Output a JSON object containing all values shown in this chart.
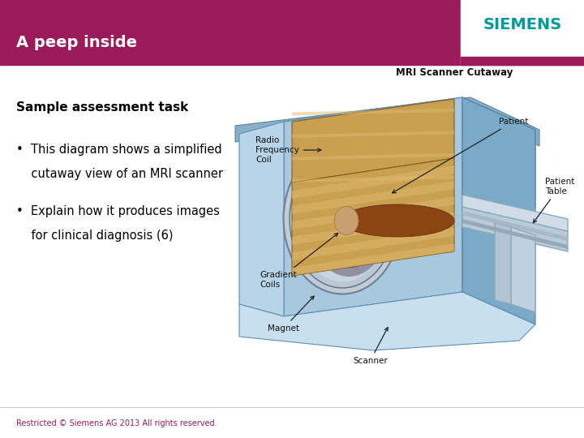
{
  "bg_color": "#ffffff",
  "header_color": "#9b1b5a",
  "header_text": "A peep inside",
  "header_text_color": "#ffffff",
  "header_font_size": 14,
  "siemens_box_color": "#ffffff",
  "siemens_text": "SIEMENS",
  "siemens_text_color": "#009999",
  "subtitle_text": "Sample assessment task",
  "subtitle_color": "#000000",
  "subtitle_font_size": 11,
  "bullet1_line1": "•  This diagram shows a simplified",
  "bullet1_line2": "    cutaway view of an MRI scanner",
  "bullet2_line1": "•  Explain how it produces images",
  "bullet2_line2": "    for clinical diagnosis (6)",
  "bullet_color": "#000000",
  "bullet_font_size": 10.5,
  "footer_text": "Restricted © Siemens AG 2013 All rights reserved.",
  "footer_color": "#9b1b5a",
  "footer_font_size": 7,
  "divider_color": "#cccccc",
  "mri_label_color": "#111111",
  "mri_label_fontsize": 7.5
}
